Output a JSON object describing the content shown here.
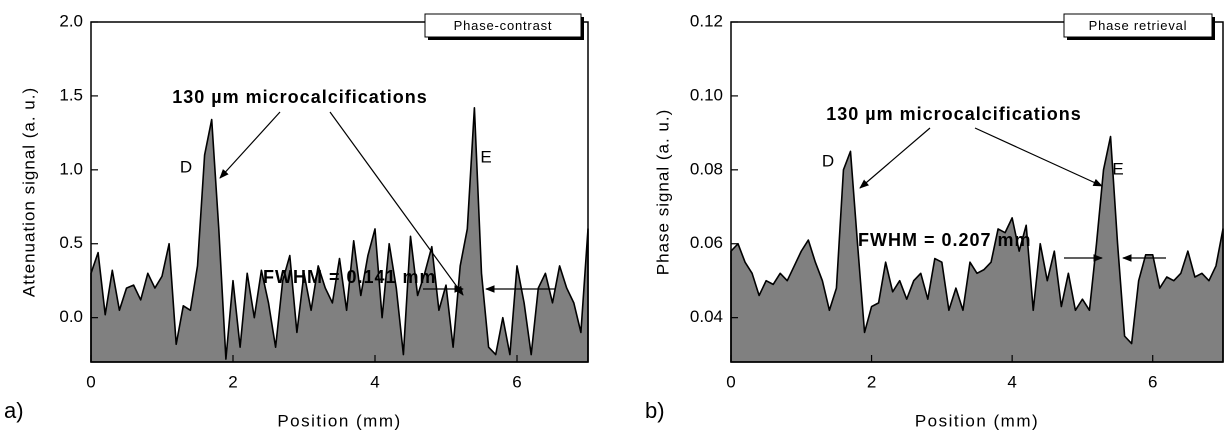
{
  "chart_data": [
    {
      "type": "area",
      "panel_label": "a)",
      "legend_label": "Phase-contrast",
      "xlabel": "Position (mm)",
      "ylabel": "Attenuation signal (a. u.)",
      "annotations": [
        "130 µm microcalcifications",
        "D",
        "E",
        "FWHM = 0.141 mm"
      ],
      "color": "#808080",
      "xlim": [
        0,
        7
      ],
      "ylim": [
        -0.3,
        2.0
      ],
      "xticks": [
        0,
        2,
        4,
        6
      ],
      "yticks": [
        {
          "value": 0,
          "label": "0.0"
        },
        0.5,
        {
          "value": 1,
          "label": "1.0"
        },
        1.5,
        {
          "value": 2,
          "label": "2.0"
        }
      ],
      "x": [
        0,
        0.1,
        0.2,
        0.3,
        0.4,
        0.5,
        0.6,
        0.7,
        0.8,
        0.9,
        1.0,
        1.1,
        1.2,
        1.3,
        1.4,
        1.5,
        1.6,
        1.7,
        1.8,
        1.9,
        2.0,
        2.1,
        2.2,
        2.3,
        2.4,
        2.5,
        2.6,
        2.7,
        2.8,
        2.9,
        3.0,
        3.1,
        3.2,
        3.3,
        3.4,
        3.5,
        3.6,
        3.7,
        3.8,
        3.9,
        4.0,
        4.1,
        4.2,
        4.3,
        4.4,
        4.5,
        4.6,
        4.7,
        4.8,
        4.9,
        5.0,
        5.1,
        5.2,
        5.3,
        5.4,
        5.5,
        5.6,
        5.7,
        5.8,
        5.9,
        6.0,
        6.1,
        6.2,
        6.3,
        6.4,
        6.5,
        6.6,
        6.7,
        6.8,
        6.9,
        7.0
      ],
      "values": [
        0.3,
        0.44,
        0.02,
        0.32,
        0.05,
        0.2,
        0.22,
        0.12,
        0.3,
        0.2,
        0.28,
        0.5,
        -0.18,
        0.08,
        0.05,
        0.35,
        1.1,
        1.34,
        0.6,
        -0.28,
        0.25,
        -0.2,
        0.3,
        0.0,
        0.32,
        0.1,
        -0.2,
        0.25,
        0.42,
        -0.1,
        0.3,
        0.05,
        0.35,
        0.2,
        0.1,
        0.4,
        0.05,
        0.52,
        0.15,
        0.42,
        0.6,
        0.0,
        0.5,
        0.2,
        -0.25,
        0.55,
        0.15,
        0.3,
        0.48,
        0.05,
        0.22,
        -0.2,
        0.35,
        0.6,
        1.42,
        0.3,
        -0.2,
        -0.25,
        0.0,
        -0.25,
        0.35,
        0.1,
        -0.25,
        0.2,
        0.3,
        0.1,
        0.35,
        0.2,
        0.1,
        -0.1,
        0.6
      ]
    },
    {
      "type": "area",
      "panel_label": "b)",
      "legend_label": "Phase retrieval",
      "xlabel": "Position (mm)",
      "ylabel": "Phase signal (a. u.)",
      "annotations": [
        "130 µm microcalcifications",
        "D",
        "E",
        "FWHM = 0.207 mm"
      ],
      "color": "#808080",
      "xlim": [
        0,
        7
      ],
      "ylim": [
        0.028,
        0.12
      ],
      "xticks": [
        0,
        2,
        4,
        6
      ],
      "yticks": [
        0.04,
        0.06,
        0.08,
        {
          "value": 0.1,
          "label": "0.10"
        },
        0.12
      ],
      "x": [
        0,
        0.1,
        0.2,
        0.3,
        0.4,
        0.5,
        0.6,
        0.7,
        0.8,
        0.9,
        1.0,
        1.1,
        1.2,
        1.3,
        1.4,
        1.5,
        1.6,
        1.7,
        1.8,
        1.9,
        2.0,
        2.1,
        2.2,
        2.3,
        2.4,
        2.5,
        2.6,
        2.7,
        2.8,
        2.9,
        3.0,
        3.1,
        3.2,
        3.3,
        3.4,
        3.5,
        3.6,
        3.7,
        3.8,
        3.9,
        4.0,
        4.1,
        4.2,
        4.3,
        4.4,
        4.5,
        4.6,
        4.7,
        4.8,
        4.9,
        5.0,
        5.1,
        5.2,
        5.3,
        5.4,
        5.5,
        5.6,
        5.7,
        5.8,
        5.9,
        6.0,
        6.1,
        6.2,
        6.3,
        6.4,
        6.5,
        6.6,
        6.7,
        6.8,
        6.9,
        7.0
      ],
      "values": [
        0.058,
        0.06,
        0.055,
        0.052,
        0.046,
        0.05,
        0.049,
        0.052,
        0.05,
        0.054,
        0.058,
        0.061,
        0.055,
        0.05,
        0.042,
        0.048,
        0.08,
        0.085,
        0.06,
        0.036,
        0.043,
        0.044,
        0.055,
        0.047,
        0.05,
        0.045,
        0.05,
        0.052,
        0.045,
        0.056,
        0.055,
        0.042,
        0.048,
        0.042,
        0.055,
        0.052,
        0.053,
        0.055,
        0.064,
        0.063,
        0.067,
        0.058,
        0.065,
        0.042,
        0.06,
        0.05,
        0.058,
        0.043,
        0.052,
        0.042,
        0.045,
        0.042,
        0.06,
        0.08,
        0.089,
        0.06,
        0.035,
        0.033,
        0.05,
        0.057,
        0.057,
        0.048,
        0.051,
        0.05,
        0.052,
        0.058,
        0.051,
        0.052,
        0.05,
        0.054,
        0.064
      ]
    }
  ]
}
